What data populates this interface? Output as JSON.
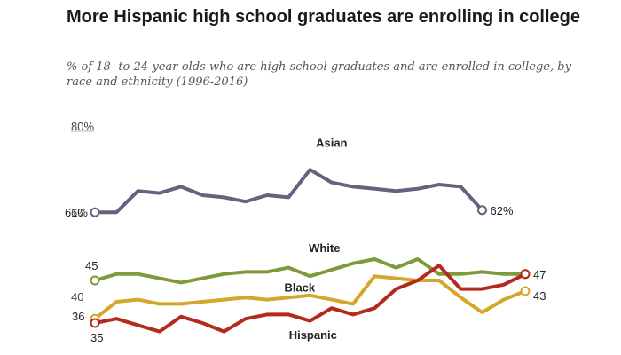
{
  "chart_data": {
    "type": "line",
    "title": "More Hispanic high school graduates are enrolling in college",
    "subtitle": "% of 18- to 24-year-olds who are high school graduates and are enrolled in college, by race and ethnicity (1996-2016)",
    "xlabel": "",
    "ylabel": "",
    "ylim": [
      30,
      80
    ],
    "yticks": [
      {
        "value": 80,
        "label": "80%"
      },
      {
        "value": 60,
        "label": "60"
      },
      {
        "value": 40,
        "label": "40"
      }
    ],
    "grid": false,
    "legend": "direct labels",
    "x": [
      1996,
      1997,
      1998,
      1999,
      2000,
      2001,
      2002,
      2003,
      2004,
      2005,
      2006,
      2007,
      2008,
      2009,
      2010,
      2011,
      2012,
      2013,
      2014,
      2015,
      2016
    ],
    "series": [
      {
        "name": "Asian",
        "color": "#6a5f80",
        "values": [
          61,
          61,
          66,
          65.5,
          67,
          65,
          64.5,
          63.5,
          65,
          64.5,
          71,
          68,
          67,
          66.5,
          66,
          66.5,
          67.5,
          67,
          61.5,
          null,
          null
        ],
        "start_label": "61%",
        "end_label": "62%"
      },
      {
        "name": "White",
        "color": "#7e9a3a",
        "values": [
          45,
          46.5,
          46.5,
          45.5,
          44.5,
          45.5,
          46.5,
          47,
          47,
          48,
          46,
          47.5,
          49,
          50,
          48,
          50,
          46.5,
          46.5,
          47,
          46.5,
          46.5
        ],
        "start_label": "45",
        "end_label": null
      },
      {
        "name": "Black",
        "color": "#d4a62a",
        "values": [
          36,
          40,
          40.5,
          39.5,
          39.5,
          40,
          40.5,
          41,
          40.5,
          41,
          41.5,
          40.5,
          39.5,
          46,
          45.5,
          45,
          45,
          41,
          37.5,
          40.5,
          42.5
        ],
        "start_label": "36",
        "end_label": "43"
      },
      {
        "name": "Hispanic",
        "color": "#b52a1f",
        "values": [
          35,
          36,
          34.5,
          33,
          36.5,
          35,
          33,
          36,
          37,
          37,
          35.5,
          38.5,
          37,
          38.5,
          43,
          45,
          48.5,
          43,
          43,
          44,
          46.5
        ],
        "start_label": "35",
        "end_label": "47"
      }
    ]
  }
}
